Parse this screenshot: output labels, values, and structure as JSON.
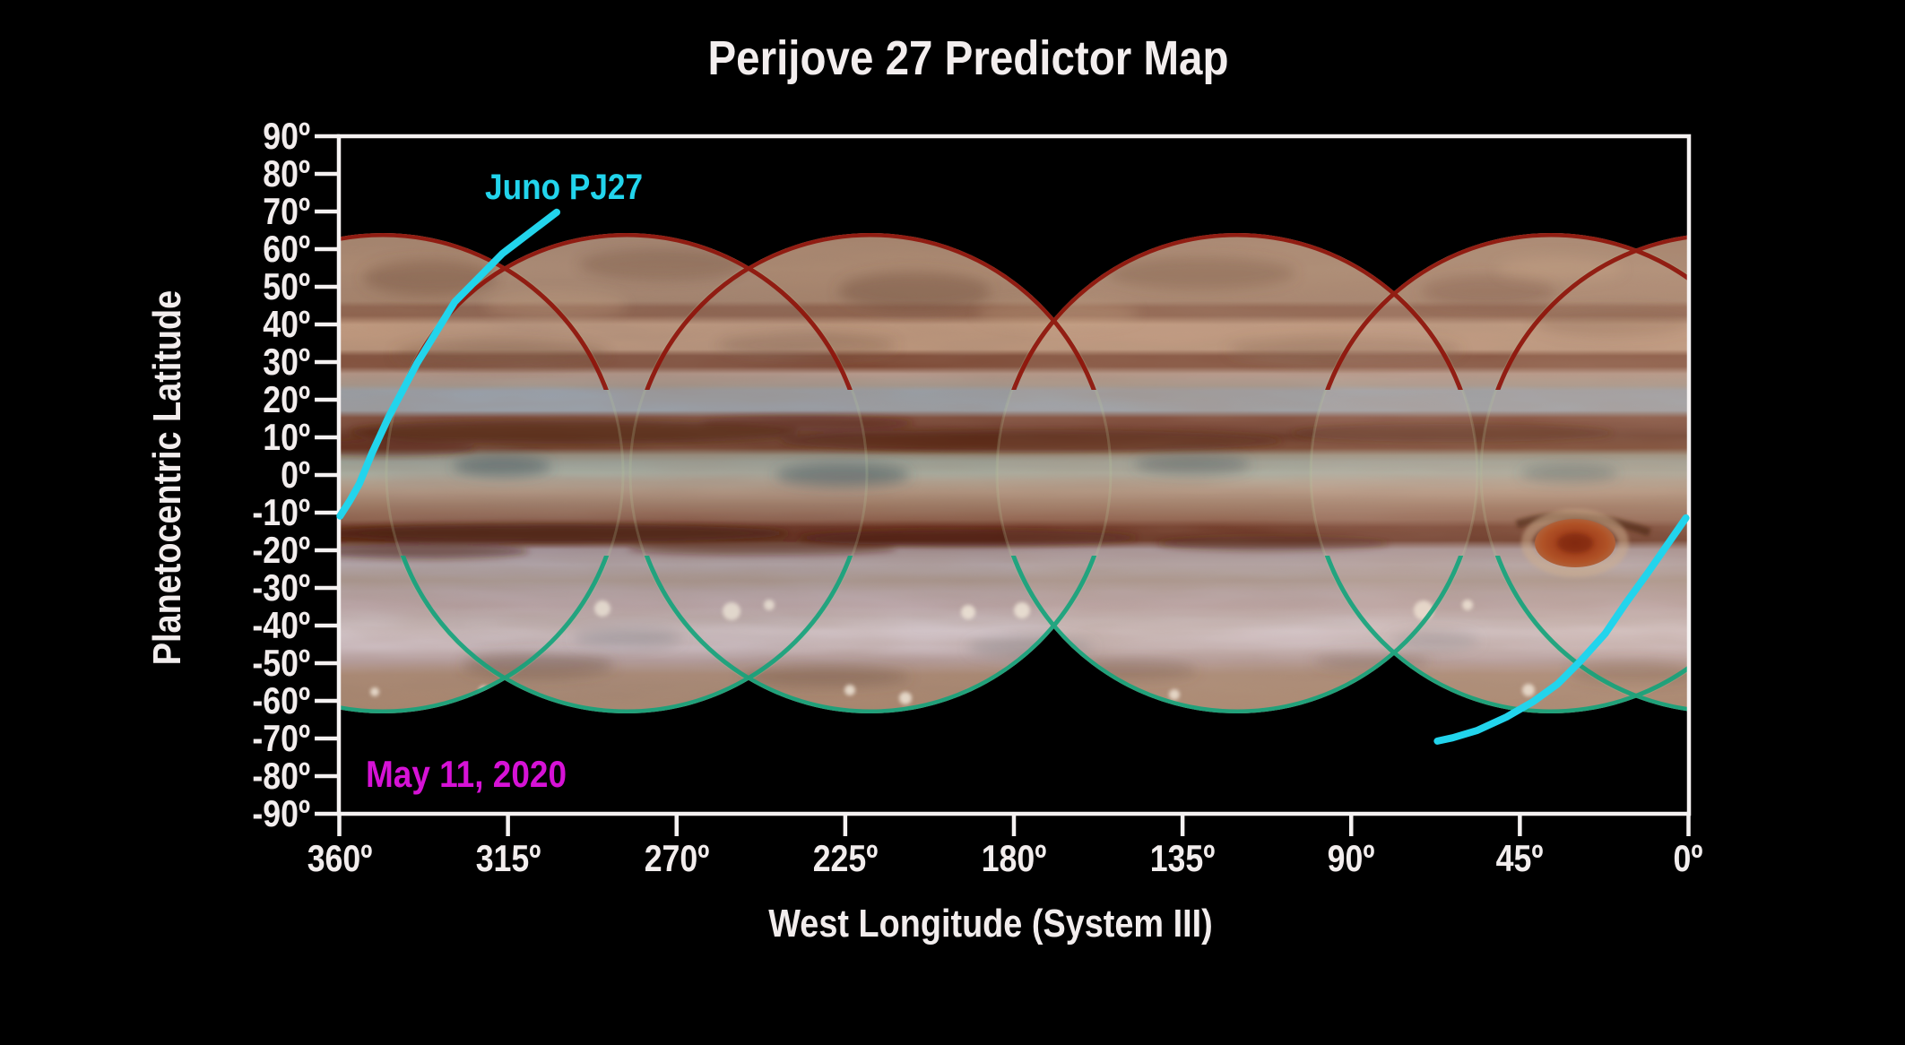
{
  "title": "Perijove 27 Predictor Map",
  "annotations": {
    "trajectory_label": "Juno PJ27",
    "date_label": "May 11, 2020"
  },
  "y_axis": {
    "label": "Planetocentric Latitude",
    "ticks": [
      {
        "label": "90º",
        "value": 90
      },
      {
        "label": "80º",
        "value": 80
      },
      {
        "label": "70º",
        "value": 70
      },
      {
        "label": "60º",
        "value": 60
      },
      {
        "label": "50º",
        "value": 50
      },
      {
        "label": "40º",
        "value": 40
      },
      {
        "label": "30º",
        "value": 30
      },
      {
        "label": "20º",
        "value": 20
      },
      {
        "label": "10º",
        "value": 10
      },
      {
        "label": "0º",
        "value": 0
      },
      {
        "label": "-10º",
        "value": -10
      },
      {
        "label": "-20º",
        "value": -20
      },
      {
        "label": "-30º",
        "value": -30
      },
      {
        "label": "-40º",
        "value": -40
      },
      {
        "label": "-50º",
        "value": -50
      },
      {
        "label": "-60º",
        "value": -60
      },
      {
        "label": "-70º",
        "value": -70
      },
      {
        "label": "-80º",
        "value": -80
      },
      {
        "label": "-90º",
        "value": -90
      }
    ]
  },
  "x_axis": {
    "label": "West Longitude (System III)",
    "ticks": [
      {
        "label": "360º",
        "value": 360
      },
      {
        "label": "315º",
        "value": 315
      },
      {
        "label": "270º",
        "value": 270
      },
      {
        "label": "225º",
        "value": 225
      },
      {
        "label": "180º",
        "value": 180
      },
      {
        "label": "135º",
        "value": 135
      },
      {
        "label": "90º",
        "value": 90
      },
      {
        "label": "45º",
        "value": 45
      },
      {
        "label": "0º",
        "value": 0
      }
    ]
  },
  "colors": {
    "background": "#000000",
    "axis": "#f5f2f2",
    "text": "#f2eded",
    "trajectory": "#22d4ec",
    "date": "#d612d6",
    "map_top_fringe": "#8e1108",
    "map_bottom_fringe": "#12a47c"
  },
  "chart_data": {
    "type": "line",
    "title": "Perijove 27 Predictor Map",
    "xlabel": "West Longitude (System III)",
    "ylabel": "Planetocentric Latitude",
    "xlim": [
      360,
      0
    ],
    "ylim": [
      -90,
      90
    ],
    "x_ticks": [
      360,
      315,
      270,
      225,
      180,
      135,
      90,
      45,
      0
    ],
    "y_ticks": [
      90,
      80,
      70,
      60,
      50,
      40,
      30,
      20,
      10,
      0,
      -10,
      -20,
      -30,
      -40,
      -50,
      -60,
      -70,
      -80,
      -90
    ],
    "grid": false,
    "legend_position": "none",
    "background_imagery": "Jupiter cylindrical map mosaic of overlapping hemispheric disks",
    "imagery_lat_extent_deg": [
      -64,
      64
    ],
    "series": [
      {
        "name": "Juno PJ27 ground track (northern segment)",
        "color": "#22d4ec",
        "points": [
          [
            302.0,
            69.8
          ],
          [
            316.5,
            58.8
          ],
          [
            329.2,
            46.0
          ],
          [
            339.2,
            29.8
          ],
          [
            346.8,
            15.5
          ],
          [
            351.2,
            6.0
          ],
          [
            354.7,
            -2.4
          ],
          [
            357.1,
            -6.7
          ],
          [
            359.8,
            -10.9
          ]
        ]
      },
      {
        "name": "Juno PJ27 ground track (southern segment)",
        "color": "#22d4ec",
        "points": [
          [
            0.7,
            -11.4
          ],
          [
            5.5,
            -18.3
          ],
          [
            11.0,
            -26.2
          ],
          [
            16.7,
            -34.0
          ],
          [
            22.2,
            -42.1
          ],
          [
            28.7,
            -49.3
          ],
          [
            34.9,
            -55.5
          ],
          [
            41.4,
            -60.2
          ],
          [
            48.6,
            -64.3
          ],
          [
            56.5,
            -67.9
          ],
          [
            62.9,
            -69.8
          ],
          [
            67.0,
            -70.7
          ]
        ]
      }
    ],
    "annotations": [
      {
        "text": "Juno PJ27",
        "color": "#22d4ec",
        "lon": 298,
        "lat": 77
      },
      {
        "text": "May 11, 2020",
        "color": "#d612d6",
        "lon": 325,
        "lat": -79
      }
    ],
    "features": [
      {
        "name": "Great Red Spot",
        "lon": 30,
        "lat": -18
      }
    ]
  }
}
